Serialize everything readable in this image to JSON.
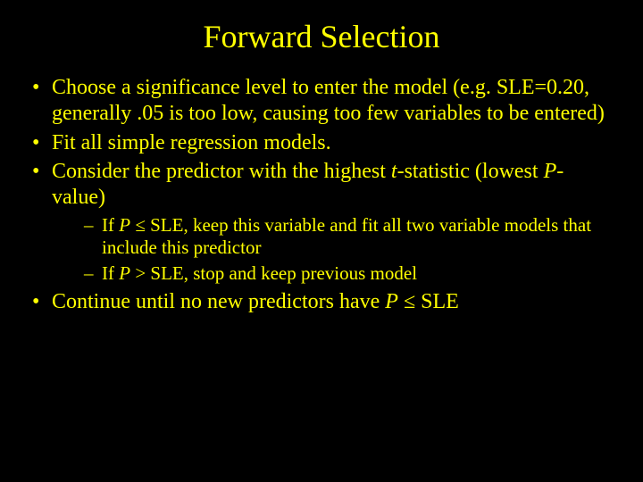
{
  "title": "Forward Selection",
  "bullets": {
    "b1": "Choose a significance level to enter the model (e.g. SLE=0.20, generally .05 is too low, causing too few variables to be entered)",
    "b2": "Fit all simple regression models.",
    "b3_pre": "Consider the predictor with the highest ",
    "b3_t": "t",
    "b3_mid": "-statistic (lowest ",
    "b3_P": "P",
    "b3_post": "-value)",
    "s1_pre": "If ",
    "s1_P": "P",
    "s1_post": " ≤ SLE, keep this variable and fit all two variable models that include this predictor",
    "s2_pre": "If ",
    "s2_P": "P",
    "s2_post": " > SLE, stop and keep previous model",
    "b4_pre": "Continue until no new predictors have ",
    "b4_P": "P",
    "b4_post": " ≤ SLE"
  },
  "colors": {
    "background": "#000000",
    "text": "#ffff00"
  },
  "typography": {
    "family": "Times New Roman",
    "title_fontsize": 36,
    "bullet_fontsize": 24,
    "sub_bullet_fontsize": 21
  }
}
